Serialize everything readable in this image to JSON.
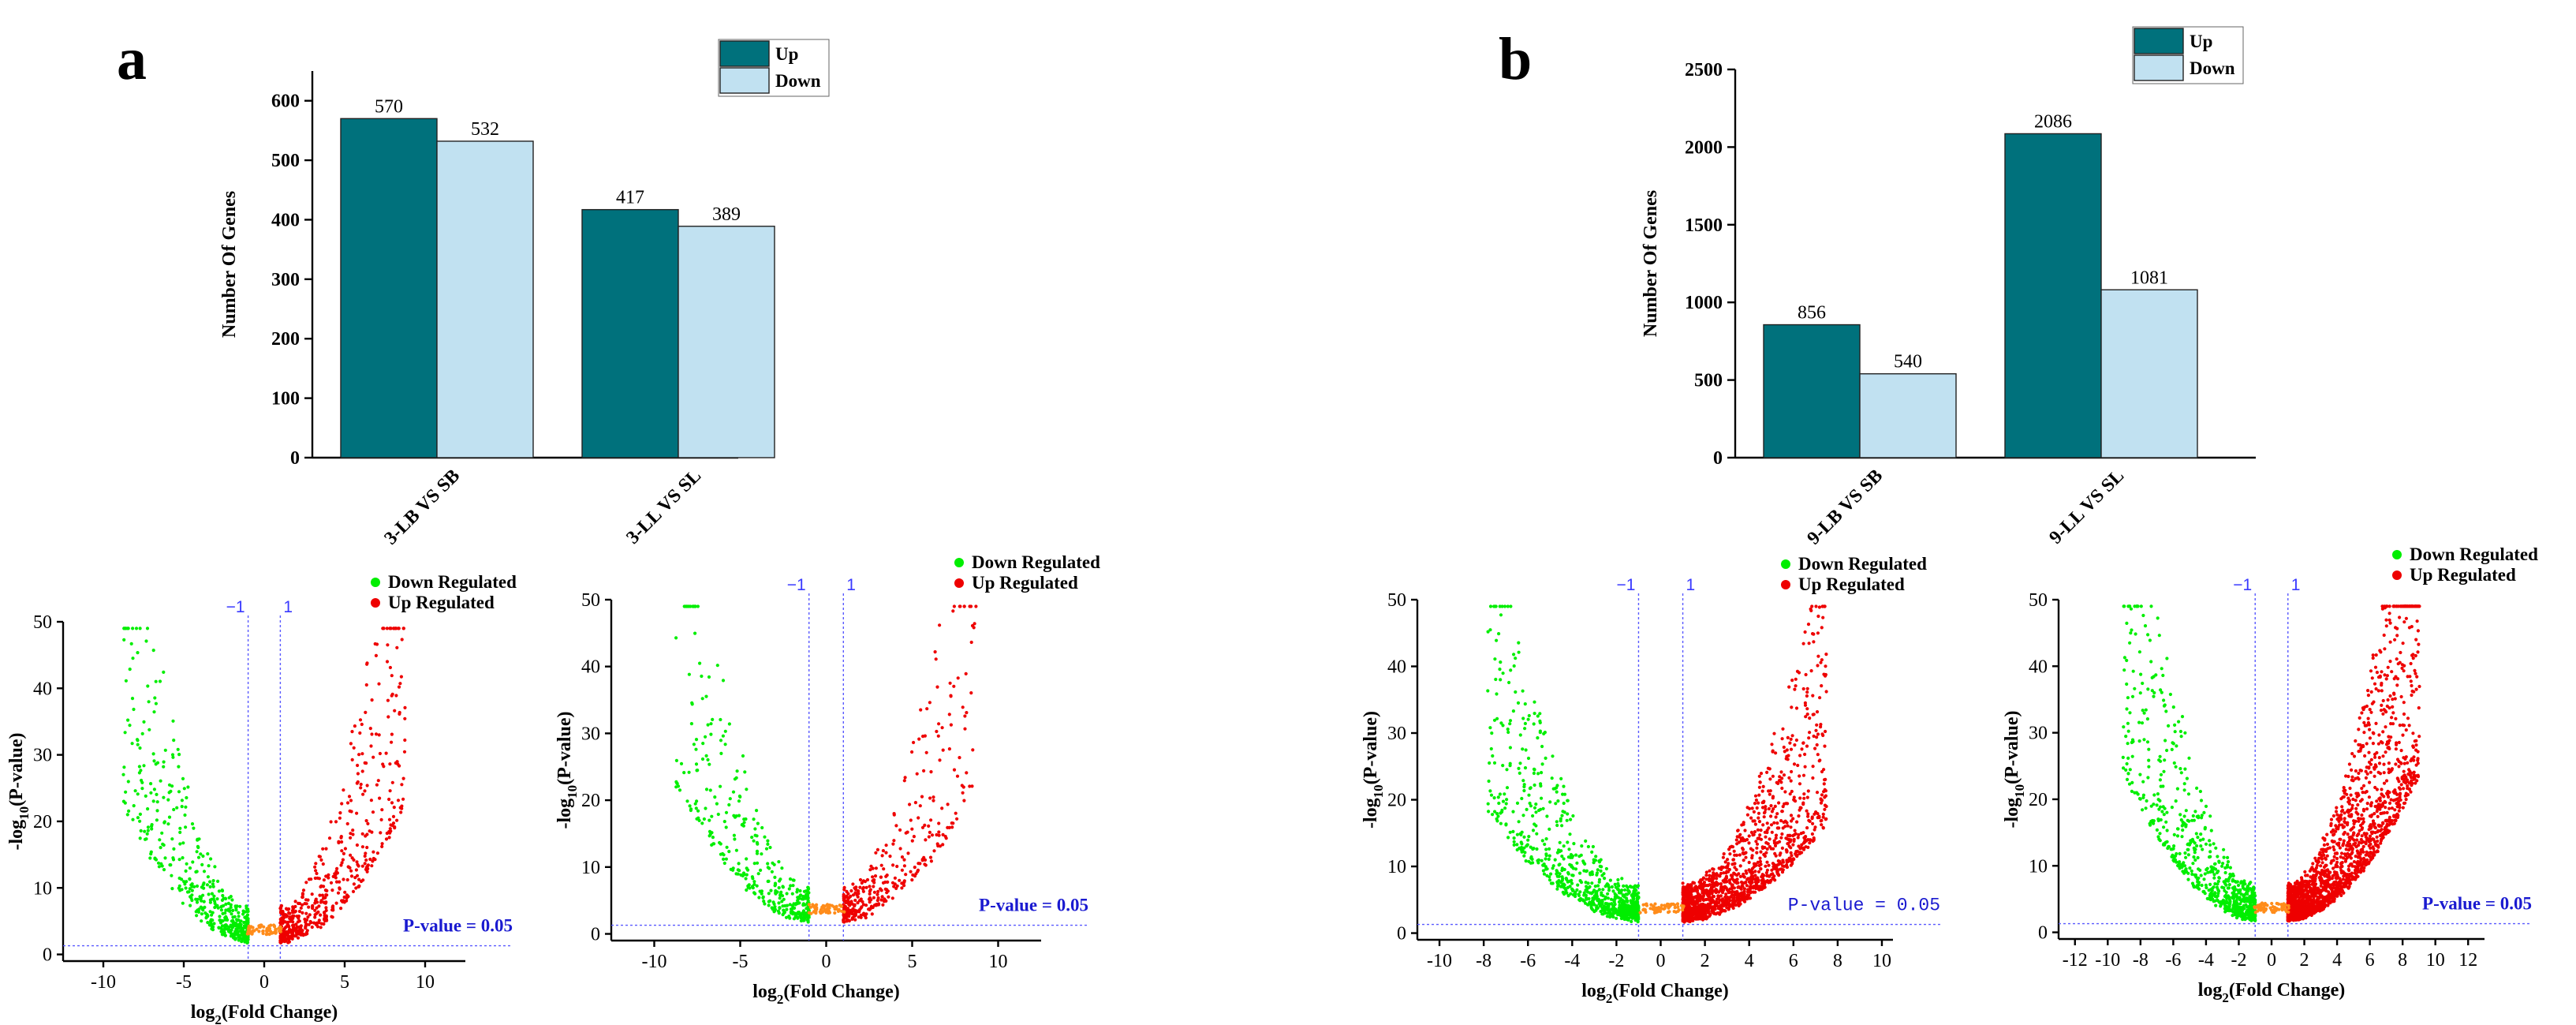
{
  "chart_data": [
    {
      "panel": "a",
      "type": "bar",
      "categories": [
        "3-LB VS SB",
        "3-LL VS SL"
      ],
      "series": [
        {
          "name": "Up",
          "values": [
            570,
            417
          ],
          "color": "#00717c"
        },
        {
          "name": "Down",
          "values": [
            532,
            389
          ],
          "color": "#c1e1f1"
        }
      ],
      "ylabel": "Number Of Genes",
      "ylim": [
        0,
        650
      ],
      "yticks": [
        0,
        100,
        200,
        300,
        400,
        500,
        600
      ],
      "legend": "top-right"
    },
    {
      "panel": "b",
      "type": "bar",
      "categories": [
        "9-LB VS SB",
        "9-LL VS SL"
      ],
      "series": [
        {
          "name": "Up",
          "values": [
            856,
            2086
          ],
          "color": "#00717c"
        },
        {
          "name": "Down",
          "values": [
            540,
            1081
          ],
          "color": "#c1e1f1"
        }
      ],
      "ylabel": "Number Of Genes",
      "ylim": [
        0,
        2500
      ],
      "yticks": [
        0,
        500,
        1000,
        1500,
        2000,
        2500
      ],
      "legend": "top-right"
    },
    {
      "panel": "a-left",
      "type": "scatter",
      "kind": "volcano",
      "xlabel_main": "log",
      "xlabel_sub": "2",
      "xlabel_rest": "(Fold Change)",
      "ylabel_main": "-log",
      "ylabel_sub": "10",
      "ylabel_rest": "(P-value)",
      "xlim": [
        -12.5,
        12.5
      ],
      "ylim": [
        -1,
        50
      ],
      "xticks": [
        -10,
        -5,
        0,
        5,
        10
      ],
      "yticks": [
        0,
        10,
        20,
        30,
        40,
        50
      ],
      "fc_lines": [
        -1,
        1
      ],
      "fc_labels": [
        "−1",
        "1"
      ],
      "pvalue_label": "P-value = 0.05",
      "legend": [
        "Down Regulated",
        "Up Regulated"
      ],
      "colors": {
        "down": "#00ee00",
        "up": "#ee0000",
        "ns": "#ff8c1a"
      },
      "seed": 11,
      "down_count": 520,
      "up_count": 550
    },
    {
      "panel": "a-right",
      "type": "scatter",
      "kind": "volcano",
      "xlabel_main": "log",
      "xlabel_sub": "2",
      "xlabel_rest": "(Fold Change)",
      "ylabel_main": "-log",
      "ylabel_sub": "10",
      "ylabel_rest": "(P-value)",
      "xlim": [
        -12.5,
        12.5
      ],
      "ylim": [
        -1,
        50
      ],
      "xticks": [
        -10,
        -5,
        0,
        5,
        10
      ],
      "yticks": [
        0,
        10,
        20,
        30,
        40,
        50
      ],
      "fc_lines": [
        -1,
        1
      ],
      "fc_labels": [
        "−1",
        "1"
      ],
      "pvalue_label": "P-value = 0.05",
      "legend": [
        "Down Regulated",
        "Up Regulated"
      ],
      "colors": {
        "down": "#00ee00",
        "up": "#ee0000",
        "ns": "#ff8c1a"
      },
      "seed": 23,
      "down_count": 380,
      "up_count": 360
    },
    {
      "panel": "b-left",
      "type": "scatter",
      "kind": "volcano",
      "xlabel_main": "log",
      "xlabel_sub": "2",
      "xlabel_rest": "(Fold Change)",
      "ylabel_main": "-log",
      "ylabel_sub": "10",
      "ylabel_rest": "(P-value)",
      "xlim": [
        -11,
        10.5
      ],
      "ylim": [
        -1,
        50
      ],
      "xticks": [
        -10,
        -8,
        -6,
        -4,
        -2,
        0,
        2,
        4,
        6,
        8,
        10
      ],
      "yticks": [
        0,
        10,
        20,
        30,
        40,
        50
      ],
      "fc_lines": [
        -1,
        1
      ],
      "fc_labels": [
        "−1",
        "1"
      ],
      "pvalue_label": "P-value = 0.05",
      "legend": [
        "Down Regulated",
        "Up Regulated"
      ],
      "colors": {
        "down": "#00ee00",
        "up": "#ee0000",
        "ns": "#ff8c1a"
      },
      "seed": 37,
      "down_count": 800,
      "up_count": 1500
    },
    {
      "panel": "b-right",
      "type": "scatter",
      "kind": "volcano",
      "xlabel_main": "log",
      "xlabel_sub": "2",
      "xlabel_rest": "(Fold Change)",
      "ylabel_main": "-log",
      "ylabel_sub": "10",
      "ylabel_rest": "(P-value)",
      "xlim": [
        -13,
        13
      ],
      "ylim": [
        -1,
        50
      ],
      "xticks": [
        -12,
        -10,
        -8,
        -6,
        -4,
        -2,
        0,
        2,
        4,
        6,
        8,
        10,
        12
      ],
      "yticks": [
        0,
        10,
        20,
        30,
        40,
        50
      ],
      "fc_lines": [
        -1,
        1
      ],
      "fc_labels": [
        "−1",
        "1"
      ],
      "pvalue_label": "P-value = 0.05",
      "legend": [
        "Down Regulated",
        "Up Regulated"
      ],
      "colors": {
        "down": "#00ee00",
        "up": "#ee0000",
        "ns": "#ff8c1a"
      },
      "seed": 53,
      "down_count": 720,
      "up_count": 2000
    }
  ],
  "labels": {
    "panel_a": "a",
    "panel_b": "b"
  }
}
